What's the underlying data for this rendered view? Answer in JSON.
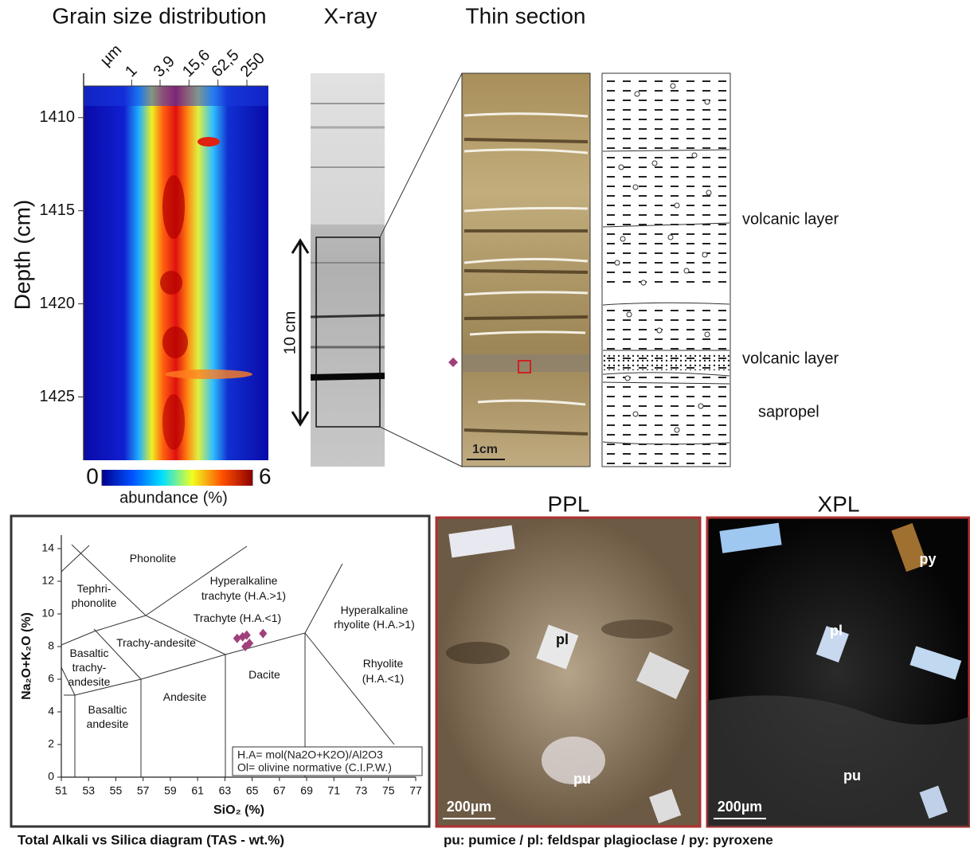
{
  "grain_size": {
    "title": "Grain size distribution",
    "y_label": "Depth (cm)",
    "x_unit": "µm",
    "xlim": [
      0.1,
      700
    ],
    "xticks": [
      1,
      {
        "value": 3.9,
        "label": "3,9"
      },
      {
        "value": 15.6,
        "label": "15,6"
      },
      {
        "value": 62.5,
        "label": "62,5"
      },
      250
    ],
    "ylim": [
      1408.3,
      1428.4
    ],
    "yticks": [
      1410,
      1415,
      1420,
      1425
    ],
    "colorbar": {
      "label": "abundance (%)",
      "lim": [
        0,
        6
      ],
      "ticks": [
        0,
        6
      ]
    }
  },
  "xray": {
    "title": "X-ray",
    "scale_label": "10 cm"
  },
  "thin_section": {
    "title": "Thin section",
    "scale_label": "1cm",
    "layer_labels": [
      "volcanic layer",
      "volcanic layer",
      "sapropel"
    ]
  },
  "chart_data": {
    "type": "scatter",
    "caption": "Total Alkali vs Silica diagram (TAS - wt.%)",
    "x_label": "SiO₂ (%)",
    "y_label": "Na₂O+K₂O (%)",
    "xlim": [
      51,
      77
    ],
    "ylim": [
      0,
      14.8
    ],
    "xticks": [
      51,
      53,
      55,
      57,
      59,
      61,
      63,
      65,
      67,
      69,
      71,
      73,
      75,
      77
    ],
    "yticks": [
      0,
      2,
      4,
      6,
      8,
      10,
      12,
      14
    ],
    "x": [
      63.9,
      64.3,
      64.6,
      64.8,
      64.5,
      65.8
    ],
    "values": [
      8.5,
      8.6,
      8.7,
      8.2,
      8.0,
      8.8
    ],
    "color": "#a0407a",
    "field_labels": [
      [
        "Phonolite"
      ],
      [
        "Tephri-",
        "phonolite"
      ],
      [
        "Hyperalkaline",
        "trachyte (H.A.>1)"
      ],
      [
        "Trachyte (H.A.<1)"
      ],
      [
        "Trachy-andesite"
      ],
      [
        "Basaltic",
        "trachy-",
        "andesite"
      ],
      [
        "Basaltic",
        "andesite"
      ],
      [
        "Andesite"
      ],
      [
        "Dacite"
      ],
      [
        "Hyperalkaline",
        "rhyolite (H.A.>1)"
      ],
      [
        "Rhyolite",
        "(H.A.<1)"
      ]
    ],
    "legend_note": [
      "H.A= mol(Na2O+K2O)/Al2O3",
      "Ol= olivine normative (C.I.P.W.)"
    ]
  },
  "micrographs": {
    "panels": [
      {
        "title": "PPL",
        "scale_label": "200µm",
        "labels": [
          "pl",
          "pu"
        ]
      },
      {
        "title": "XPL",
        "scale_label": "200µm",
        "labels": [
          "py",
          "pl",
          "pu"
        ]
      }
    ],
    "caption": "pu: pumice / pl: feldspar plagioclase / py: pyroxene"
  }
}
